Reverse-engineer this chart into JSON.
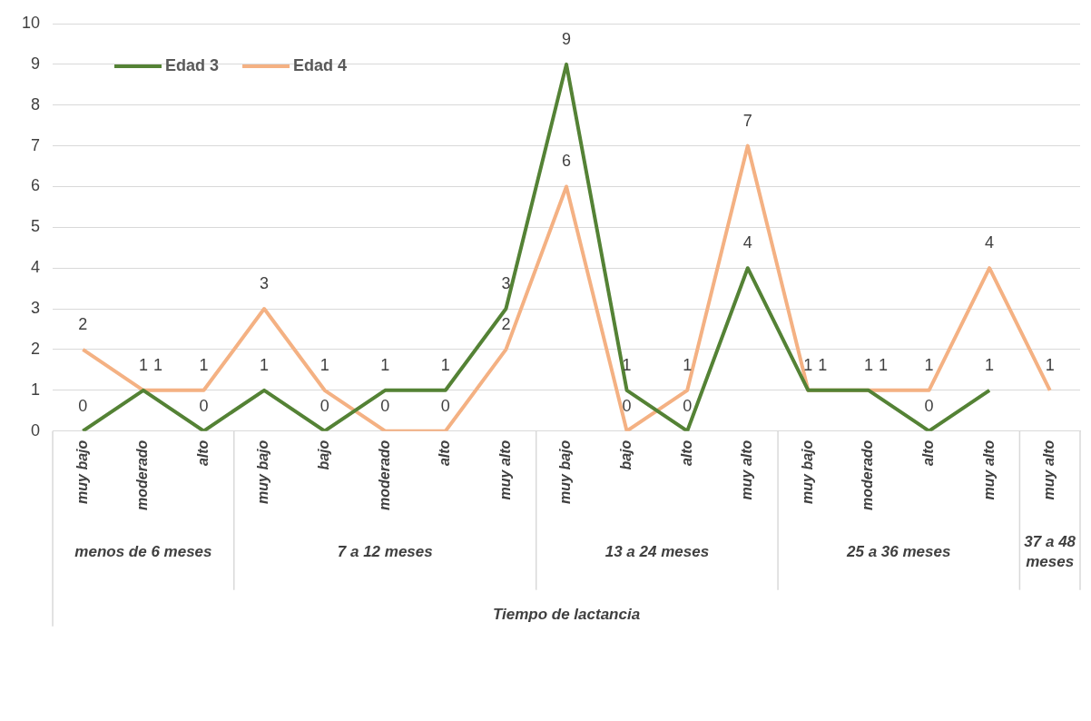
{
  "chart_data": {
    "type": "line",
    "categories": [
      "muy bajo",
      "moderado",
      "alto",
      "muy bajo",
      "bajo",
      "moderado",
      "alto",
      "muy alto",
      "muy bajo",
      "bajo",
      "alto",
      "muy alto",
      "muy bajo",
      "moderado",
      "alto",
      "muy alto",
      "muy alto"
    ],
    "annotations": [
      "menos de 6 meses",
      "7 a 12 meses",
      "13 a 24 meses",
      "25 a 36 meses",
      "37 a 48 meses",
      "Tiempo de lactancia"
    ],
    "series": [
      {
        "name": "Edad 3",
        "color": "#548235",
        "values": [
          0,
          1,
          0,
          1,
          0,
          1,
          1,
          3,
          9,
          1,
          0,
          4,
          1,
          1,
          0,
          1,
          null
        ]
      },
      {
        "name": "Edad 4",
        "color": "#f4b183",
        "values": [
          2,
          1,
          1,
          3,
          1,
          0,
          0,
          2,
          6,
          0,
          1,
          7,
          1,
          1,
          1,
          4,
          1
        ]
      }
    ],
    "ylim": [
      0,
      10
    ],
    "yticks": [
      0,
      1,
      2,
      3,
      4,
      5,
      6,
      7,
      8,
      9,
      10
    ],
    "grid": "y",
    "legend": "top left",
    "data_labels": true,
    "marker": "none",
    "line_style": "solid"
  }
}
